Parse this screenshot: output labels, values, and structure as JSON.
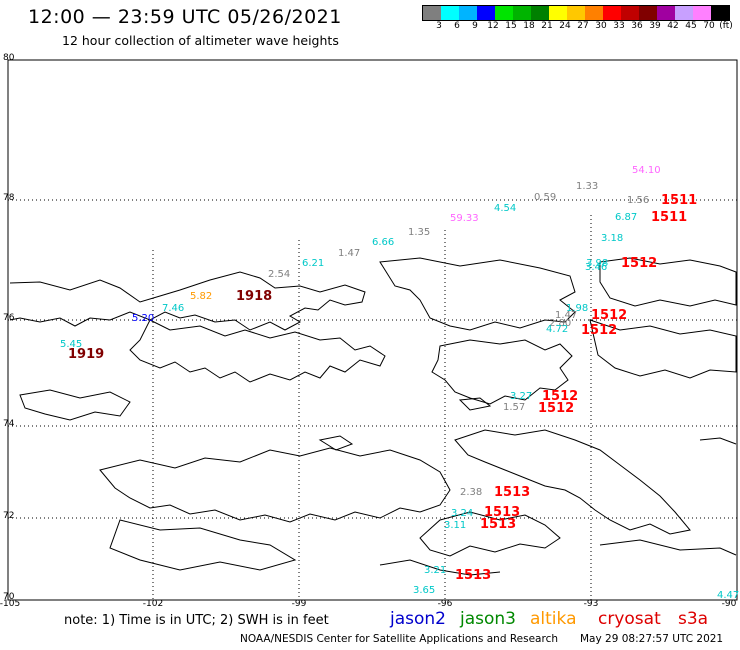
{
  "header": {
    "title": "12:00 — 23:59 UTC 05/26/2021",
    "subtitle": "12 hour collection of altimeter wave heights"
  },
  "colorbar": {
    "colors": [
      "#7f7f7f",
      "#00ffff",
      "#00b4ff",
      "#0000ff",
      "#00e400",
      "#00b400",
      "#008000",
      "#ffff00",
      "#ffc800",
      "#ff8000",
      "#ff0000",
      "#c00000",
      "#800000",
      "#a000a0",
      "#c8a0ff",
      "#ff80ff",
      "#000000"
    ],
    "labels": [
      "3",
      "6",
      "9",
      "12",
      "15",
      "18",
      "21",
      "24",
      "27",
      "30",
      "33",
      "36",
      "39",
      "42",
      "45",
      "70",
      "(ft)"
    ]
  },
  "map": {
    "lat_labels": [
      "80",
      "78",
      "76",
      "74",
      "72",
      "70"
    ],
    "lon_labels": [
      "-105",
      "-102",
      "-99",
      "-96",
      "-93",
      "-90"
    ],
    "observations": [
      {
        "text": "54.10",
        "color": "#ff66ff",
        "size": "small"
      },
      {
        "text": "1.33",
        "color": "#808080",
        "size": "small"
      },
      {
        "text": "0.59",
        "color": "#808080",
        "size": "small"
      },
      {
        "text": "1.56",
        "color": "#808080",
        "size": "small"
      },
      {
        "text": "1511",
        "color": "#ff0000",
        "size": "big"
      },
      {
        "text": "4.54",
        "color": "#00c8c8",
        "size": "small"
      },
      {
        "text": "59.33",
        "color": "#ff66ff",
        "size": "small"
      },
      {
        "text": "6.87",
        "color": "#00c8c8",
        "size": "small"
      },
      {
        "text": "1511",
        "color": "#ff0000",
        "size": "big"
      },
      {
        "text": "1.35",
        "color": "#808080",
        "size": "small"
      },
      {
        "text": "3.18",
        "color": "#00c8c8",
        "size": "small"
      },
      {
        "text": "6.66",
        "color": "#00c8c8",
        "size": "small"
      },
      {
        "text": "1.47",
        "color": "#808080",
        "size": "small"
      },
      {
        "text": "6.21",
        "color": "#00c8c8",
        "size": "small"
      },
      {
        "text": "3.98",
        "color": "#00c8c8",
        "size": "small"
      },
      {
        "text": "3.46",
        "color": "#00c8c8",
        "size": "small"
      },
      {
        "text": "1512",
        "color": "#ff0000",
        "size": "big"
      },
      {
        "text": "2.54",
        "color": "#808080",
        "size": "small"
      },
      {
        "text": "1918",
        "color": "#800000",
        "size": "big"
      },
      {
        "text": "5.82",
        "color": "#ff9900",
        "size": "small"
      },
      {
        "text": "7.46",
        "color": "#00c8c8",
        "size": "small"
      },
      {
        "text": "5.20",
        "color": "#0000ff",
        "size": "small"
      },
      {
        "text": "1.98",
        "color": "#00c8c8",
        "size": "small"
      },
      {
        "text": "1.47",
        "color": "#808080",
        "size": "small"
      },
      {
        "text": "1512",
        "color": "#ff0000",
        "size": "big"
      },
      {
        "text": "2.80",
        "color": "#808080",
        "size": "small"
      },
      {
        "text": "4.72",
        "color": "#00c8c8",
        "size": "small"
      },
      {
        "text": "1512",
        "color": "#ff0000",
        "size": "big"
      },
      {
        "text": "5.45",
        "color": "#00c8c8",
        "size": "small"
      },
      {
        "text": "1919",
        "color": "#800000",
        "size": "big"
      },
      {
        "text": "3.27",
        "color": "#00c8c8",
        "size": "small"
      },
      {
        "text": "1512",
        "color": "#ff0000",
        "size": "big"
      },
      {
        "text": "1.57",
        "color": "#808080",
        "size": "small"
      },
      {
        "text": "1512",
        "color": "#ff0000",
        "size": "big"
      },
      {
        "text": "2.38",
        "color": "#808080",
        "size": "small"
      },
      {
        "text": "1513",
        "color": "#ff0000",
        "size": "big"
      },
      {
        "text": "3.24",
        "color": "#00c8c8",
        "size": "small"
      },
      {
        "text": "1513",
        "color": "#ff0000",
        "size": "big"
      },
      {
        "text": "3.11",
        "color": "#00c8c8",
        "size": "small"
      },
      {
        "text": "1513",
        "color": "#ff0000",
        "size": "big"
      },
      {
        "text": "3.21",
        "color": "#00c8c8",
        "size": "small"
      },
      {
        "text": "1513",
        "color": "#ff0000",
        "size": "big"
      },
      {
        "text": "3.65",
        "color": "#00c8c8",
        "size": "small"
      },
      {
        "text": "4.47",
        "color": "#00c8c8",
        "size": "small"
      }
    ]
  },
  "footer": {
    "note": "note:  1) Time is in UTC;  2) SWH is in feet",
    "missions": [
      {
        "label": "jason2",
        "color": "#0000cc"
      },
      {
        "label": "jason3",
        "color": "#008800"
      },
      {
        "label": "altika",
        "color": "#ff9900"
      },
      {
        "label": "cryosat",
        "color": "#dd0000"
      },
      {
        "label": "s3a",
        "color": "#dd0000"
      }
    ],
    "credit": "NOAA/NESDIS Center for Satellite Applications and Research",
    "timestamp": "May 29 08:27:57 UTC 2021"
  }
}
